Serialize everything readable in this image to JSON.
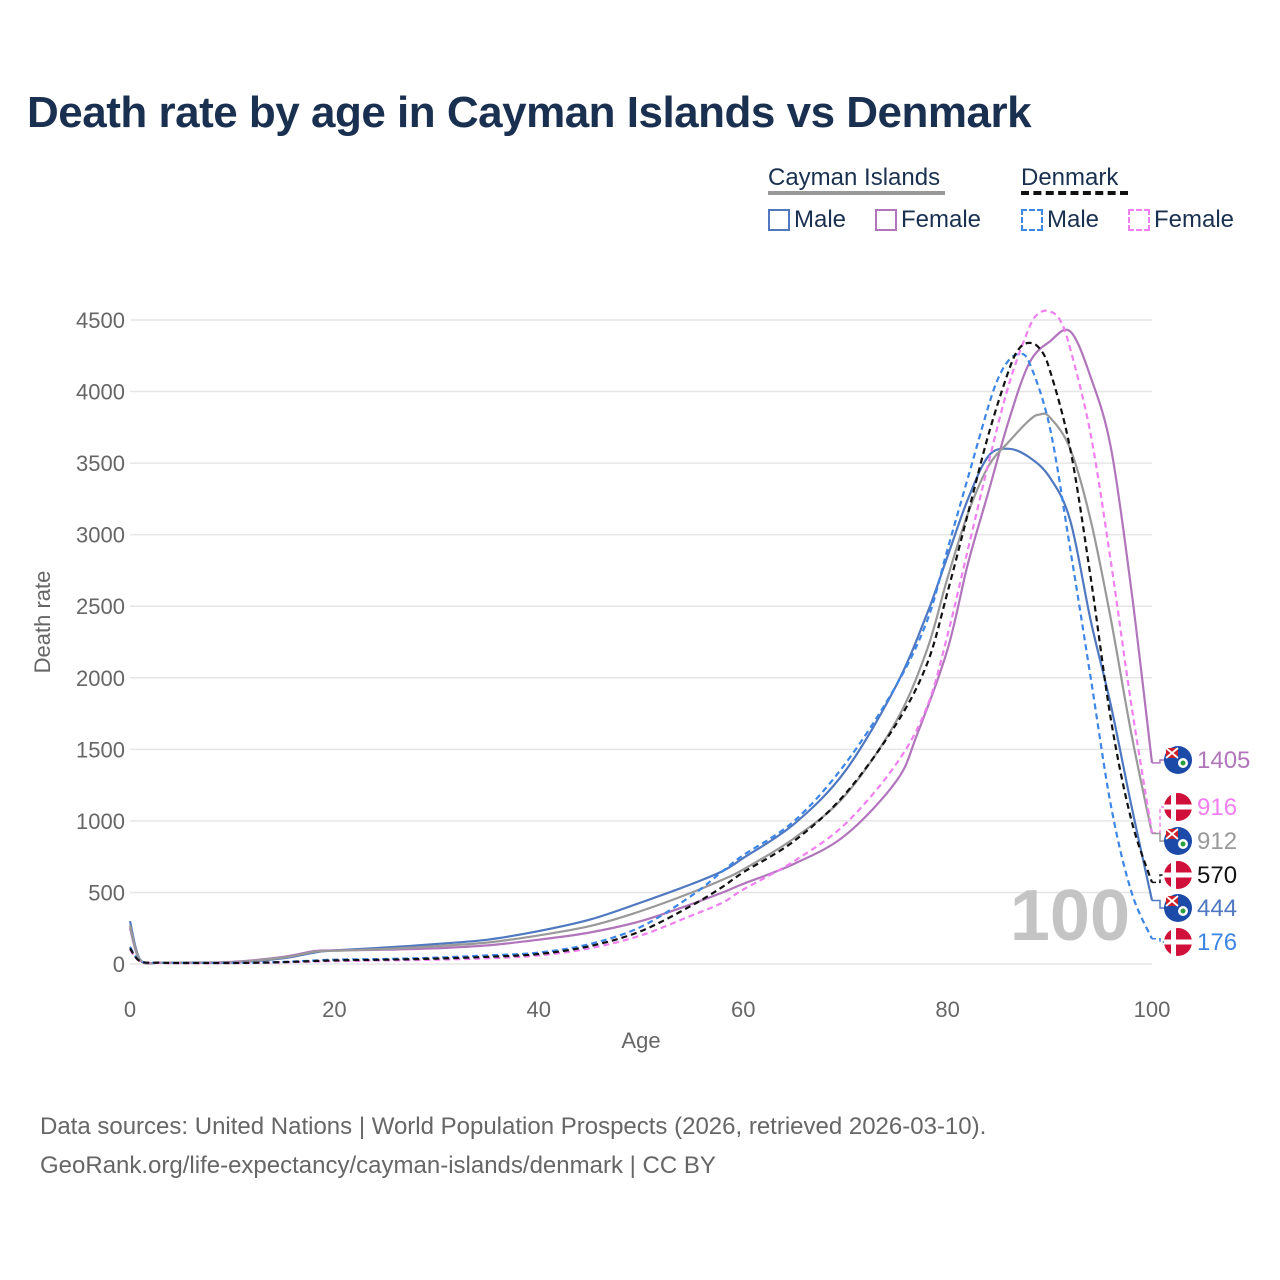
{
  "title": "Death rate by age in Cayman Islands vs Denmark",
  "legend": {
    "groups": [
      {
        "name": "Cayman Islands",
        "underline_color": "#999999",
        "underline_style": "solid",
        "items": [
          {
            "label": "Male",
            "color": "#4f78c0",
            "style": "solid"
          },
          {
            "label": "Female",
            "color": "#b175bb",
            "style": "solid"
          }
        ]
      },
      {
        "name": "Denmark",
        "underline_color": "#111111",
        "underline_style": "dashed",
        "items": [
          {
            "label": "Male",
            "color": "#3d86e6",
            "style": "dashed"
          },
          {
            "label": "Female",
            "color": "#f07ff0",
            "style": "dashed"
          }
        ]
      }
    ]
  },
  "year_watermark": "100",
  "source": {
    "line1": "Data sources: United Nations | World Population Prospects (2026, retrieved 2026-03-10).",
    "line2": "GeoRank.org/life-expectancy/cayman-islands/denmark | CC BY"
  },
  "chart_data": {
    "type": "line",
    "title": "Death rate by age in Cayman Islands vs Denmark",
    "xlabel": "Age",
    "ylabel": "Death rate",
    "xlim": [
      0,
      100
    ],
    "ylim": [
      0,
      4500
    ],
    "x_ticks": [
      0,
      20,
      40,
      60,
      80,
      100
    ],
    "y_ticks": [
      0,
      500,
      1000,
      1500,
      2000,
      2500,
      3000,
      3500,
      4000,
      4500
    ],
    "grid": true,
    "series": [
      {
        "name": "Cayman Islands Male",
        "country": "Cayman Islands",
        "sex": "Male",
        "color": "#4f78c0",
        "style": "solid",
        "x": [
          0,
          1,
          3,
          5,
          10,
          15,
          18,
          20,
          25,
          30,
          35,
          40,
          45,
          50,
          55,
          58,
          60,
          65,
          70,
          75,
          78,
          80,
          82,
          84,
          86,
          88,
          90,
          92,
          94,
          96,
          98,
          100
        ],
        "y": [
          300,
          30,
          10,
          10,
          10,
          40,
          80,
          95,
          115,
          140,
          170,
          230,
          310,
          430,
          560,
          650,
          740,
          980,
          1350,
          1950,
          2450,
          2850,
          3250,
          3550,
          3600,
          3540,
          3400,
          3100,
          2400,
          1800,
          1100,
          444
        ]
      },
      {
        "name": "Cayman Islands Female",
        "country": "Cayman Islands",
        "sex": "Female",
        "color": "#b175bb",
        "style": "solid",
        "x": [
          0,
          1,
          3,
          5,
          10,
          15,
          18,
          20,
          25,
          30,
          35,
          40,
          45,
          50,
          55,
          58,
          60,
          65,
          70,
          75,
          77,
          80,
          82,
          84,
          86,
          88,
          90,
          92,
          94,
          96,
          98,
          100
        ],
        "y": [
          250,
          25,
          10,
          10,
          15,
          50,
          90,
          95,
          100,
          110,
          130,
          170,
          220,
          300,
          420,
          500,
          560,
          700,
          900,
          1280,
          1600,
          2200,
          2800,
          3300,
          3800,
          4200,
          4350,
          4420,
          4100,
          3600,
          2600,
          1405
        ]
      },
      {
        "name": "Cayman Islands Total",
        "country": "Cayman Islands",
        "sex": "Total",
        "color": "#999999",
        "style": "solid",
        "x": [
          0,
          1,
          3,
          5,
          10,
          15,
          18,
          20,
          25,
          30,
          35,
          40,
          45,
          50,
          55,
          58,
          60,
          65,
          70,
          75,
          78,
          80,
          82,
          84,
          86,
          88,
          89,
          90,
          92,
          94,
          96,
          98,
          100
        ],
        "y": [
          270,
          28,
          10,
          10,
          12,
          45,
          85,
          92,
          105,
          125,
          150,
          200,
          265,
          370,
          500,
          590,
          660,
          880,
          1180,
          1700,
          2200,
          2700,
          3150,
          3480,
          3650,
          3800,
          3840,
          3820,
          3600,
          3100,
          2400,
          1600,
          912
        ]
      },
      {
        "name": "Denmark Male",
        "country": "Denmark",
        "sex": "Male",
        "color": "#3d86e6",
        "style": "dashed",
        "x": [
          0,
          1,
          3,
          5,
          10,
          15,
          20,
          25,
          30,
          35,
          40,
          45,
          50,
          55,
          58,
          60,
          65,
          70,
          75,
          78,
          80,
          82,
          84,
          85,
          86,
          87,
          88,
          90,
          92,
          94,
          96,
          98,
          100
        ],
        "y": [
          120,
          20,
          10,
          8,
          8,
          15,
          30,
          35,
          45,
          60,
          80,
          140,
          260,
          480,
          650,
          760,
          1000,
          1400,
          1950,
          2400,
          2900,
          3400,
          3900,
          4100,
          4220,
          4260,
          4200,
          3750,
          2900,
          2000,
          1100,
          500,
          176
        ]
      },
      {
        "name": "Denmark Female",
        "country": "Denmark",
        "sex": "Female",
        "color": "#f07ff0",
        "style": "dashed",
        "x": [
          0,
          1,
          3,
          5,
          10,
          15,
          20,
          25,
          30,
          35,
          40,
          45,
          50,
          55,
          58,
          60,
          65,
          70,
          75,
          78,
          80,
          82,
          84,
          86,
          88,
          89,
          90,
          91,
          92,
          94,
          96,
          98,
          100
        ],
        "y": [
          100,
          18,
          8,
          6,
          6,
          12,
          20,
          25,
          30,
          40,
          60,
          110,
          200,
          340,
          430,
          520,
          720,
          980,
          1400,
          1800,
          2300,
          2900,
          3500,
          4050,
          4450,
          4550,
          4560,
          4500,
          4300,
          3700,
          2800,
          1800,
          916
        ]
      },
      {
        "name": "Denmark Total",
        "country": "Denmark",
        "sex": "Total",
        "color": "#111111",
        "style": "dashed",
        "x": [
          0,
          1,
          3,
          5,
          10,
          15,
          20,
          25,
          30,
          35,
          40,
          45,
          50,
          55,
          58,
          60,
          65,
          70,
          75,
          78,
          80,
          82,
          84,
          86,
          87,
          88,
          89,
          90,
          92,
          94,
          96,
          98,
          100
        ],
        "y": [
          110,
          19,
          9,
          7,
          7,
          13,
          25,
          30,
          38,
          50,
          70,
          125,
          230,
          410,
          540,
          640,
          860,
          1190,
          1680,
          2100,
          2600,
          3150,
          3700,
          4150,
          4300,
          4340,
          4300,
          4150,
          3600,
          2700,
          1700,
          1000,
          570
        ]
      }
    ],
    "end_labels": [
      {
        "value": "1405",
        "color": "#b175bb",
        "flag": "cayman-islands"
      },
      {
        "value": "916",
        "color": "#f07ff0",
        "flag": "denmark"
      },
      {
        "value": "912",
        "color": "#999999",
        "flag": "cayman-islands"
      },
      {
        "value": "570",
        "color": "#111111",
        "flag": "denmark"
      },
      {
        "value": "444",
        "color": "#4f78c0",
        "flag": "cayman-islands"
      },
      {
        "value": "176",
        "color": "#3d86e6",
        "flag": "denmark"
      }
    ]
  }
}
